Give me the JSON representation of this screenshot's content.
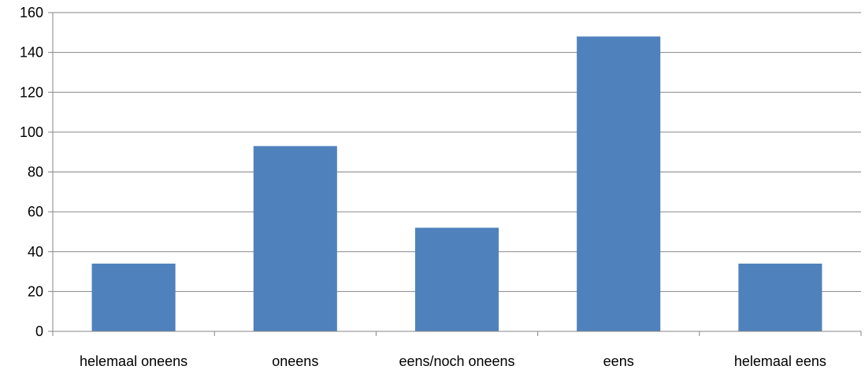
{
  "chart_data": {
    "type": "bar",
    "title": "",
    "xlabel": "",
    "ylabel": "",
    "categories": [
      "helemaal oneens",
      "oneens",
      "eens/noch oneens",
      "eens",
      "helemaal eens"
    ],
    "values": [
      34,
      93,
      52,
      148,
      34
    ],
    "ylim": [
      0,
      160
    ],
    "yticks": [
      0,
      20,
      40,
      60,
      80,
      100,
      120,
      140,
      160
    ],
    "grid": true,
    "legend": "none",
    "colors": {
      "bar": "#4f81bd",
      "grid": "#868686",
      "axis": "#868686"
    }
  }
}
